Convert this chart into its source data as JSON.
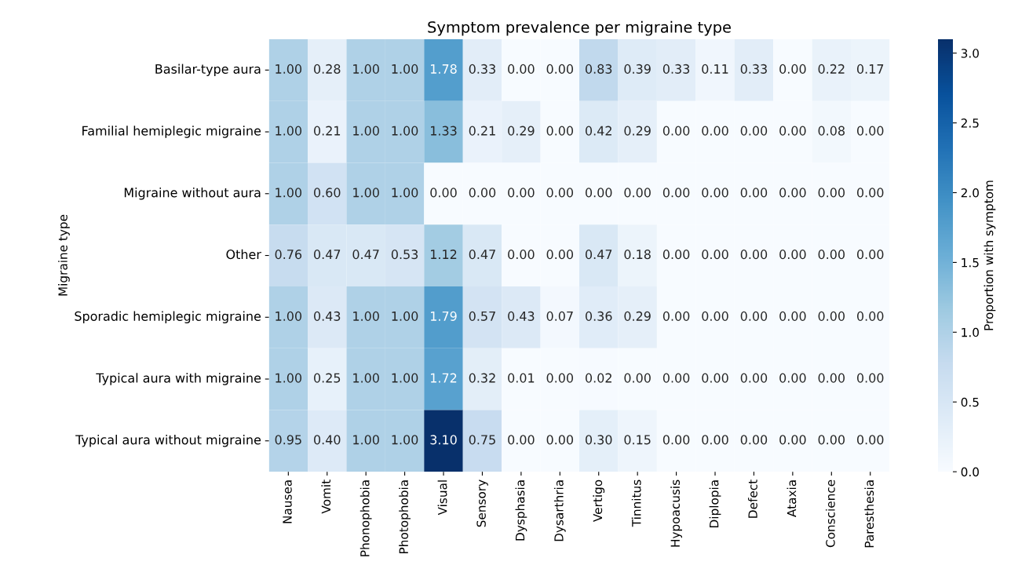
{
  "chart_data": {
    "type": "heatmap",
    "title": "Symptom prevalence per migraine type",
    "ylabel": "Migraine type",
    "clabel": "Proportion with symptom",
    "categories": [
      "Nausea",
      "Vomit",
      "Phonophobia",
      "Photophobia",
      "Visual",
      "Sensory",
      "Dysphasia",
      "Dysarthria",
      "Vertigo",
      "Tinnitus",
      "Hypoacusis",
      "Diplopia",
      "Defect",
      "Ataxia",
      "Conscience",
      "Paresthesia"
    ],
    "y_categories": [
      "Basilar-type aura",
      "Familial hemiplegic migraine",
      "Migraine without aura",
      "Other",
      "Sporadic hemiplegic migraine",
      "Typical aura with migraine",
      "Typical aura without migraine"
    ],
    "cells": [
      [
        1.0,
        0.28,
        1.0,
        1.0,
        1.78,
        0.33,
        0.0,
        0.0,
        0.83,
        0.39,
        0.33,
        0.11,
        0.33,
        0.0,
        0.22,
        0.17
      ],
      [
        1.0,
        0.21,
        1.0,
        1.0,
        1.33,
        0.21,
        0.29,
        0.0,
        0.42,
        0.29,
        0.0,
        0.0,
        0.0,
        0.0,
        0.08,
        0.0
      ],
      [
        1.0,
        0.6,
        1.0,
        1.0,
        0.0,
        0.0,
        0.0,
        0.0,
        0.0,
        0.0,
        0.0,
        0.0,
        0.0,
        0.0,
        0.0,
        0.0
      ],
      [
        0.76,
        0.47,
        0.47,
        0.53,
        1.12,
        0.47,
        0.0,
        0.0,
        0.47,
        0.18,
        0.0,
        0.0,
        0.0,
        0.0,
        0.0,
        0.0
      ],
      [
        1.0,
        0.43,
        1.0,
        1.0,
        1.79,
        0.57,
        0.43,
        0.07,
        0.36,
        0.29,
        0.0,
        0.0,
        0.0,
        0.0,
        0.0,
        0.0
      ],
      [
        1.0,
        0.25,
        1.0,
        1.0,
        1.72,
        0.32,
        0.01,
        0.0,
        0.02,
        0.0,
        0.0,
        0.0,
        0.0,
        0.0,
        0.0,
        0.0
      ],
      [
        0.95,
        0.4,
        1.0,
        1.0,
        3.1,
        0.75,
        0.0,
        0.0,
        0.3,
        0.15,
        0.0,
        0.0,
        0.0,
        0.0,
        0.0,
        0.0
      ]
    ],
    "cell_labels": [
      [
        "1.00",
        "0.28",
        "1.00",
        "1.00",
        "1.78",
        "0.33",
        "0.00",
        "0.00",
        "0.83",
        "0.39",
        "0.33",
        "0.11",
        "0.33",
        "0.00",
        "0.22",
        "0.17"
      ],
      [
        "1.00",
        "0.21",
        "1.00",
        "1.00",
        "1.33",
        "0.21",
        "0.29",
        "0.00",
        "0.42",
        "0.29",
        "0.00",
        "0.00",
        "0.00",
        "0.00",
        "0.08",
        "0.00"
      ],
      [
        "1.00",
        "0.60",
        "1.00",
        "1.00",
        "0.00",
        "0.00",
        "0.00",
        "0.00",
        "0.00",
        "0.00",
        "0.00",
        "0.00",
        "0.00",
        "0.00",
        "0.00",
        "0.00"
      ],
      [
        "0.76",
        "0.47",
        "0.47",
        "0.53",
        "1.12",
        "0.47",
        "0.00",
        "0.00",
        "0.47",
        "0.18",
        "0.00",
        "0.00",
        "0.00",
        "0.00",
        "0.00",
        "0.00"
      ],
      [
        "1.00",
        "0.43",
        "1.00",
        "1.00",
        "1.79",
        "0.57",
        "0.43",
        "0.07",
        "0.36",
        "0.29",
        "0.00",
        "0.00",
        "0.00",
        "0.00",
        "0.00",
        "0.00"
      ],
      [
        "1.00",
        "0.25",
        "1.00",
        "1.00",
        "1.72",
        "0.32",
        "0.01",
        "0.00",
        "0.02",
        "0.00",
        "0.00",
        "0.00",
        "0.00",
        "0.00",
        "0.00",
        "0.00"
      ],
      [
        "0.95",
        "0.40",
        "1.00",
        "1.00",
        "3.10",
        "0.75",
        "0.00",
        "0.00",
        "0.30",
        "0.15",
        "0.00",
        "0.00",
        "0.00",
        "0.00",
        "0.00",
        "0.00"
      ]
    ],
    "clim": [
      0,
      3.1
    ],
    "cticks": [
      {
        "value": 0,
        "label": "0.0"
      },
      {
        "value": 0.5,
        "label": "0.5"
      },
      {
        "value": 1,
        "label": "1.0"
      },
      {
        "value": 1.5,
        "label": "1.5"
      },
      {
        "value": 2,
        "label": "2.0"
      },
      {
        "value": 2.5,
        "label": "2.5"
      },
      {
        "value": 3,
        "label": "3.0"
      }
    ]
  }
}
